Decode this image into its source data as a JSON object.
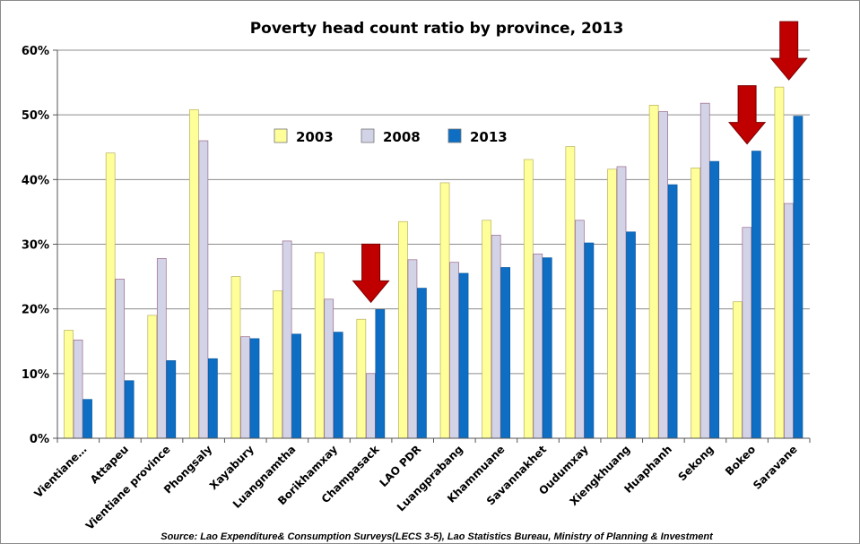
{
  "chart_data": {
    "type": "bar",
    "title": "Poverty head count ratio by province, 2013",
    "xlabel": "",
    "ylabel": "",
    "ylim": [
      0,
      60
    ],
    "yticks": [
      "0%",
      "10%",
      "20%",
      "30%",
      "40%",
      "50%",
      "60%"
    ],
    "grid": true,
    "legend_placement": "top-center",
    "categories": [
      "Vientiane…",
      "Attapeu",
      "Vientiane province",
      "Phongsaly",
      "Xayabury",
      "Luangnamtha",
      "Borikhamxay",
      "Champasack",
      "LAO PDR",
      "Luangprabang",
      "Khammuane",
      "Savannakhet",
      "Oudumxay",
      "Xiengkhuang",
      "Huaphanh",
      "Sekong",
      "Bokeo",
      "Saravane"
    ],
    "series": [
      {
        "name": "2003",
        "color": "#ffff99",
        "values": [
          16.7,
          44.1,
          19.0,
          50.8,
          25.0,
          22.8,
          28.7,
          18.4,
          33.5,
          39.5,
          33.7,
          43.1,
          45.1,
          41.6,
          51.5,
          41.8,
          21.1,
          54.3
        ]
      },
      {
        "name": "2008",
        "color": "#d3d3e8",
        "values": [
          15.2,
          24.6,
          27.8,
          46.0,
          15.7,
          30.5,
          21.5,
          10.0,
          27.6,
          27.2,
          31.4,
          28.5,
          33.7,
          42.0,
          50.5,
          51.8,
          32.6,
          36.3
        ]
      },
      {
        "name": "2013",
        "color": "#0d6ec4",
        "values": [
          6.0,
          8.9,
          12.0,
          12.3,
          15.4,
          16.1,
          16.4,
          19.9,
          23.2,
          25.5,
          26.4,
          27.9,
          30.2,
          31.9,
          39.2,
          42.8,
          44.4,
          49.8
        ]
      }
    ],
    "highlighted": [
      "Champasack",
      "Bokeo",
      "Saravane"
    ],
    "arrow_color": "#c00000",
    "source": "Source: Lao Expenditure& Consumption Surveys(LECS 3-5), Lao Statistics Bureau, Ministry of Planning & Investment"
  }
}
